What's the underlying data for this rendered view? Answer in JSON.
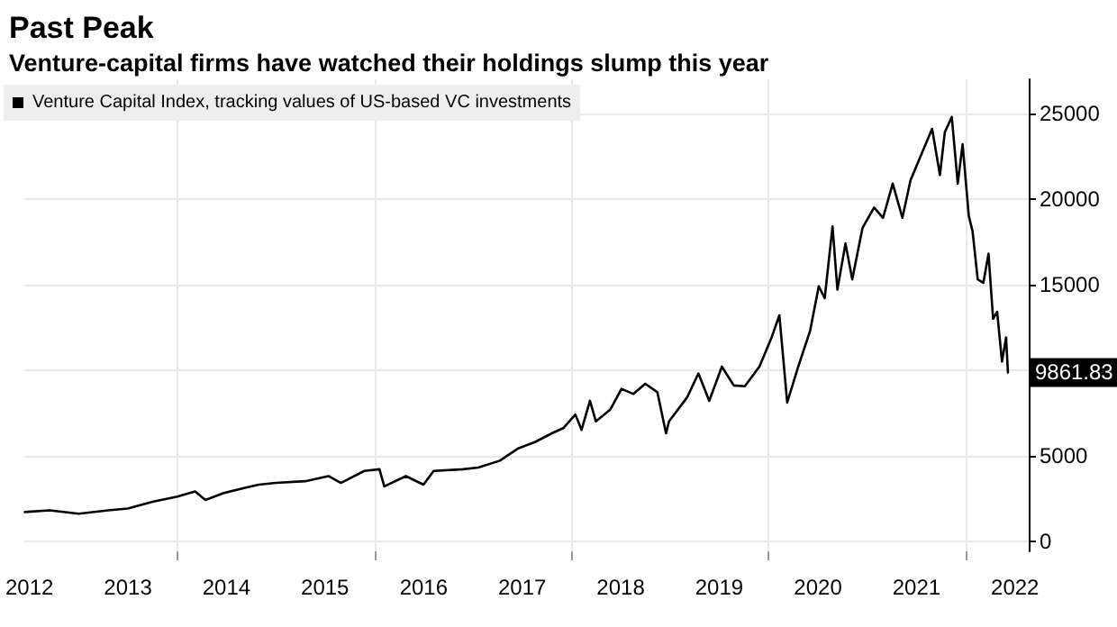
{
  "chart_data": {
    "type": "line",
    "title": "Past Peak",
    "subtitle": "Venture-capital firms have watched their holdings slump this year",
    "x": [
      "2012-06-15",
      "2012-09-15",
      "2013-01-01",
      "2013-04-20",
      "2013-07-01",
      "2013-10-01",
      "2014-01-01",
      "2014-03-08",
      "2014-04-15",
      "2014-06-20",
      "2014-09-05",
      "2014-10-30",
      "2015-01-01",
      "2015-04-20",
      "2015-07-15",
      "2015-08-30",
      "2015-11-25",
      "2016-01-20",
      "2016-02-07",
      "2016-04-27",
      "2016-07-01",
      "2016-08-08",
      "2016-11-25",
      "2017-01-20",
      "2017-04-10",
      "2017-06-15",
      "2017-08-20",
      "2017-10-20",
      "2017-12-01",
      "2018-01-15",
      "2018-02-07",
      "2018-03-10",
      "2018-04-01",
      "2018-05-25",
      "2018-07-05",
      "2018-08-18",
      "2018-10-01",
      "2018-11-15",
      "2018-12-17",
      "2018-12-28",
      "2019-03-05",
      "2019-04-16",
      "2019-05-26",
      "2019-07-12",
      "2019-08-25",
      "2019-10-05",
      "2019-11-28",
      "2020-01-12",
      "2020-02-10",
      "2020-03-10",
      "2020-04-20",
      "2020-06-03",
      "2020-07-05",
      "2020-07-27",
      "2020-08-25",
      "2020-09-12",
      "2020-10-12",
      "2020-11-06",
      "2020-12-14",
      "2021-01-26",
      "2021-02-28",
      "2021-04-05",
      "2021-05-11",
      "2021-06-10",
      "2021-07-20",
      "2021-08-29",
      "2021-09-27",
      "2021-10-15",
      "2021-11-10",
      "2021-12-02",
      "2021-12-20",
      "2022-01-12",
      "2022-01-26",
      "2022-02-14",
      "2022-03-07",
      "2022-03-26",
      "2022-04-12",
      "2022-04-27",
      "2022-05-15",
      "2022-05-30",
      "2022-06-06"
    ],
    "series": [
      {
        "name": "Venture Capital Index, tracking values of US-based VC investments",
        "color": "#000000",
        "values": [
          1700,
          1800,
          1600,
          1800,
          1900,
          2300,
          2600,
          2900,
          2400,
          2800,
          3100,
          3300,
          3400,
          3500,
          3800,
          3400,
          4100,
          4200,
          3200,
          3800,
          3300,
          4100,
          4200,
          4300,
          4700,
          5400,
          5800,
          6300,
          6600,
          7400,
          6500,
          8200,
          7000,
          7700,
          8900,
          8600,
          9200,
          8700,
          6300,
          7000,
          8400,
          9800,
          8200,
          10200,
          9100,
          9050,
          10200,
          11900,
          13200,
          8100,
          10200,
          12300,
          14900,
          14200,
          18400,
          14700,
          17400,
          15300,
          18300,
          19500,
          18900,
          20900,
          18900,
          21100,
          22600,
          24100,
          21400,
          23900,
          24800,
          20900,
          23200,
          19000,
          18100,
          15300,
          15100,
          16800,
          13000,
          13400,
          10500,
          11900,
          9861.83
        ],
        "value_labels": [
          null,
          null,
          null,
          null,
          null,
          null,
          null,
          null,
          null,
          null,
          null,
          null,
          null,
          null,
          null,
          null,
          null,
          null,
          null,
          null,
          null,
          null,
          null,
          null,
          null,
          null,
          null,
          null,
          null,
          null,
          null,
          null,
          null,
          null,
          null,
          null,
          null,
          null,
          null,
          null,
          null,
          null,
          null,
          null,
          null,
          null,
          null,
          null,
          null,
          null,
          null,
          null,
          null,
          null,
          null,
          null,
          null,
          null,
          null,
          null,
          null,
          null,
          null,
          null,
          null,
          null,
          null,
          null,
          null,
          null,
          null,
          null,
          null,
          null,
          null,
          null,
          null,
          null,
          null,
          null,
          "9861.83"
        ]
      }
    ],
    "xlim": [
      "2012-06-13",
      "2022-08-22"
    ],
    "xticks": [
      {
        "value": "2012-07-02",
        "label": "2012"
      },
      {
        "value": "2013-07-02",
        "label": "2013"
      },
      {
        "value": "2014-01-01",
        "label": null
      },
      {
        "value": "2014-07-02",
        "label": "2014"
      },
      {
        "value": "2015-07-02",
        "label": "2015"
      },
      {
        "value": "2016-01-01",
        "label": null
      },
      {
        "value": "2016-07-02",
        "label": "2016"
      },
      {
        "value": "2017-07-02",
        "label": "2017"
      },
      {
        "value": "2018-01-01",
        "label": null
      },
      {
        "value": "2018-07-02",
        "label": "2018"
      },
      {
        "value": "2019-07-02",
        "label": "2019"
      },
      {
        "value": "2020-01-01",
        "label": null
      },
      {
        "value": "2020-07-02",
        "label": "2020"
      },
      {
        "value": "2021-07-02",
        "label": "2021"
      },
      {
        "value": "2022-01-01",
        "label": null
      },
      {
        "value": "2022-07-02",
        "label": "2022"
      }
    ],
    "ylim": [
      -600,
      27000
    ],
    "yticks": [
      0,
      5000,
      {
        "value": 10000,
        "label": null
      },
      15000,
      20000,
      25000
    ],
    "grid": true,
    "legend": "top left",
    "marker": "none",
    "line_style": "solid"
  }
}
